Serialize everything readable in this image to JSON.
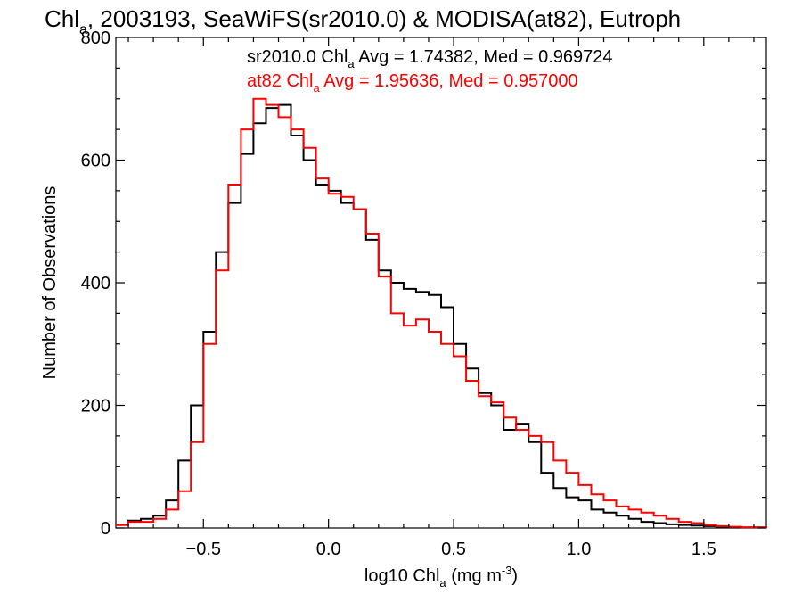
{
  "chart_data": {
    "type": "line",
    "title": {
      "prefix": "Chl",
      "sub": "a",
      "rest": ", 2003193, SeaWiFS(sr2010.0) & MODISA(at82), Eutroph"
    },
    "xlabel": {
      "prefix": "log10 Chl",
      "sub": "a",
      "mid": " (mg m",
      "sup": "-3",
      "end": ")"
    },
    "ylabel": "Number of Observations",
    "xlim": [
      -0.85,
      1.75
    ],
    "ylim": [
      0,
      800
    ],
    "xticks": [
      {
        "value": -0.5,
        "label": "−0.5"
      },
      {
        "value": 0.0,
        "label": "0.0"
      },
      {
        "value": 0.5,
        "label": "0.5"
      },
      {
        "value": 1.0,
        "label": "1.0"
      },
      {
        "value": 1.5,
        "label": "1.5"
      }
    ],
    "yticks": [
      {
        "value": 0,
        "label": "0"
      },
      {
        "value": 200,
        "label": "200"
      },
      {
        "value": 400,
        "label": "400"
      },
      {
        "value": 600,
        "label": "600"
      },
      {
        "value": 800,
        "label": "800"
      }
    ],
    "annotations": [
      {
        "prefix": "sr2010.0 Chl",
        "sub": "a",
        "rest": " Avg = 1.74382, Med = 0.969724",
        "color": "#000000"
      },
      {
        "prefix": "at82 Chl",
        "sub": "a",
        "rest": " Avg = 1.95636, Med = 0.957000",
        "color": "#ff0000"
      }
    ],
    "series": [
      {
        "color": "#000000",
        "x": [
          -0.85,
          -0.8,
          -0.75,
          -0.7,
          -0.65,
          -0.6,
          -0.55,
          -0.5,
          -0.45,
          -0.4,
          -0.35,
          -0.3,
          -0.25,
          -0.2,
          -0.15,
          -0.1,
          -0.05,
          0.0,
          0.05,
          0.1,
          0.15,
          0.2,
          0.25,
          0.3,
          0.35,
          0.4,
          0.45,
          0.5,
          0.55,
          0.6,
          0.65,
          0.7,
          0.75,
          0.8,
          0.85,
          0.9,
          0.95,
          1.0,
          1.05,
          1.1,
          1.15,
          1.2,
          1.25,
          1.3,
          1.35,
          1.4,
          1.45,
          1.5,
          1.55,
          1.6,
          1.65,
          1.7,
          1.75
        ],
        "y": [
          5,
          12,
          15,
          20,
          45,
          110,
          200,
          320,
          450,
          530,
          610,
          660,
          685,
          690,
          640,
          600,
          560,
          550,
          530,
          520,
          470,
          420,
          400,
          390,
          385,
          380,
          360,
          300,
          260,
          220,
          200,
          160,
          170,
          140,
          90,
          65,
          50,
          45,
          30,
          25,
          20,
          15,
          10,
          8,
          6,
          5,
          4,
          3,
          2,
          1,
          1,
          1,
          0
        ]
      },
      {
        "color": "#ff0000",
        "x": [
          -0.85,
          -0.8,
          -0.75,
          -0.7,
          -0.65,
          -0.6,
          -0.55,
          -0.5,
          -0.45,
          -0.4,
          -0.35,
          -0.3,
          -0.25,
          -0.2,
          -0.15,
          -0.1,
          -0.05,
          0.0,
          0.05,
          0.1,
          0.15,
          0.2,
          0.25,
          0.3,
          0.35,
          0.4,
          0.45,
          0.5,
          0.55,
          0.6,
          0.65,
          0.7,
          0.75,
          0.8,
          0.85,
          0.9,
          0.95,
          1.0,
          1.05,
          1.1,
          1.15,
          1.2,
          1.25,
          1.3,
          1.35,
          1.4,
          1.45,
          1.5,
          1.55,
          1.6,
          1.65,
          1.7,
          1.75
        ],
        "y": [
          5,
          10,
          10,
          15,
          30,
          60,
          140,
          300,
          420,
          560,
          650,
          700,
          690,
          670,
          650,
          620,
          570,
          545,
          540,
          520,
          480,
          410,
          350,
          330,
          340,
          320,
          300,
          280,
          240,
          215,
          205,
          180,
          160,
          150,
          140,
          110,
          90,
          70,
          55,
          45,
          35,
          30,
          25,
          20,
          15,
          10,
          8,
          5,
          3,
          2,
          1,
          1,
          0
        ]
      }
    ],
    "grid": false,
    "legend": "none"
  }
}
